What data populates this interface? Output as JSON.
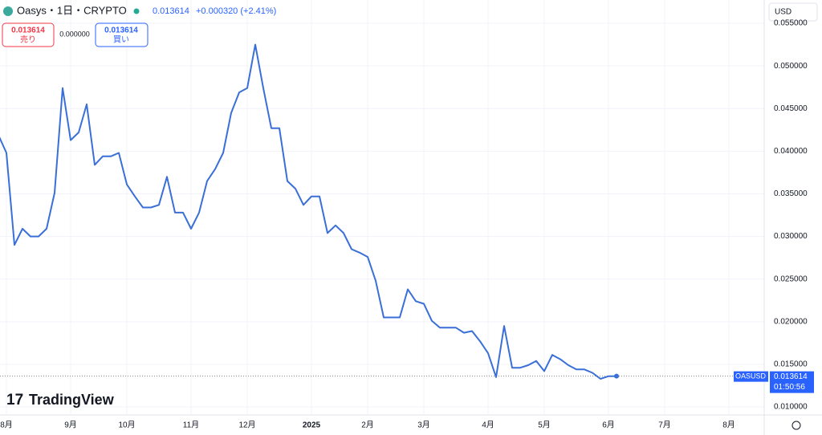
{
  "header": {
    "symbol": "Oasys・1日・CRYPTO",
    "price": "0.013614",
    "change": "+0.000320 (+2.41%)",
    "sell_price": "0.013614",
    "sell_label": "売り",
    "spread": "0.000000",
    "buy_price": "0.013614",
    "buy_label": "買い",
    "currency": "USD",
    "tag_symbol": "OASUSD",
    "tag_price": "0.013614",
    "tag_countdown": "01:50:56",
    "logo": "TradingView"
  },
  "chart_data": {
    "type": "line",
    "color": "#3a6fd8",
    "grid": true,
    "categories": [
      null,
      "8月",
      null,
      null,
      null,
      null,
      null,
      null,
      null,
      "9月",
      null,
      null,
      null,
      null,
      null,
      null,
      "10月",
      null,
      null,
      null,
      null,
      null,
      null,
      null,
      "11月",
      null,
      null,
      null,
      null,
      null,
      null,
      "12月",
      null,
      null,
      null,
      null,
      null,
      null,
      null,
      "2025",
      null,
      null,
      null,
      null,
      null,
      null,
      "2月",
      null,
      null,
      null,
      null,
      null,
      null,
      "3月",
      null,
      null,
      null,
      null,
      null,
      null,
      null,
      "4月",
      null,
      null,
      null,
      null,
      null,
      null,
      "5月",
      null,
      null,
      null,
      null,
      null,
      null,
      null,
      "6月",
      null,
      null,
      null,
      null,
      null,
      null,
      "7月",
      null,
      null,
      null,
      null,
      null,
      null,
      null,
      "8月"
    ],
    "values": [
      0.0419,
      0.0398,
      0.029,
      0.0309,
      0.03,
      0.03,
      0.0309,
      0.0351,
      0.0474,
      0.0413,
      0.0422,
      0.0455,
      0.0384,
      0.0394,
      0.0394,
      0.0398,
      0.0361,
      0.0347,
      0.0334,
      0.0334,
      0.0337,
      0.037,
      0.0328,
      0.0328,
      0.0309,
      0.0328,
      0.0365,
      0.0379,
      0.0398,
      0.0445,
      0.0469,
      0.0474,
      0.0525,
      0.0474,
      0.0427,
      0.0427,
      0.0365,
      0.0356,
      0.0337,
      0.0347,
      0.0347,
      0.0304,
      0.0313,
      0.0304,
      0.0285,
      0.0281,
      0.0276,
      0.0248,
      0.0205,
      0.0205,
      0.0205,
      0.0238,
      0.0224,
      0.0221,
      0.0201,
      0.0193,
      0.0193,
      0.0193,
      0.0187,
      0.0189,
      0.0177,
      0.0163,
      0.0135,
      0.0195,
      0.0146,
      0.0146,
      0.0149,
      0.0154,
      0.0142,
      0.0161,
      0.0156,
      0.0149,
      0.0144,
      0.0144,
      0.014,
      0.0133,
      0.0136,
      0.013614,
      null,
      null,
      null,
      null,
      null,
      null,
      null,
      null,
      null,
      null,
      null,
      null,
      null,
      null
    ],
    "ylim": [
      0.00925,
      0.0551
    ],
    "yticks": [
      {
        "value": 0.01,
        "label": "0.010000"
      },
      {
        "value": 0.015,
        "label": "0.015000"
      },
      {
        "value": 0.02,
        "label": "0.020000"
      },
      {
        "value": 0.025,
        "label": "0.025000"
      },
      {
        "value": 0.03,
        "label": "0.030000"
      },
      {
        "value": 0.035,
        "label": "0.035000"
      },
      {
        "value": 0.04,
        "label": "0.040000"
      },
      {
        "value": 0.045,
        "label": "0.045000"
      },
      {
        "value": 0.05,
        "label": "0.050000"
      },
      {
        "value": 0.055,
        "label": "0.055000"
      }
    ]
  }
}
